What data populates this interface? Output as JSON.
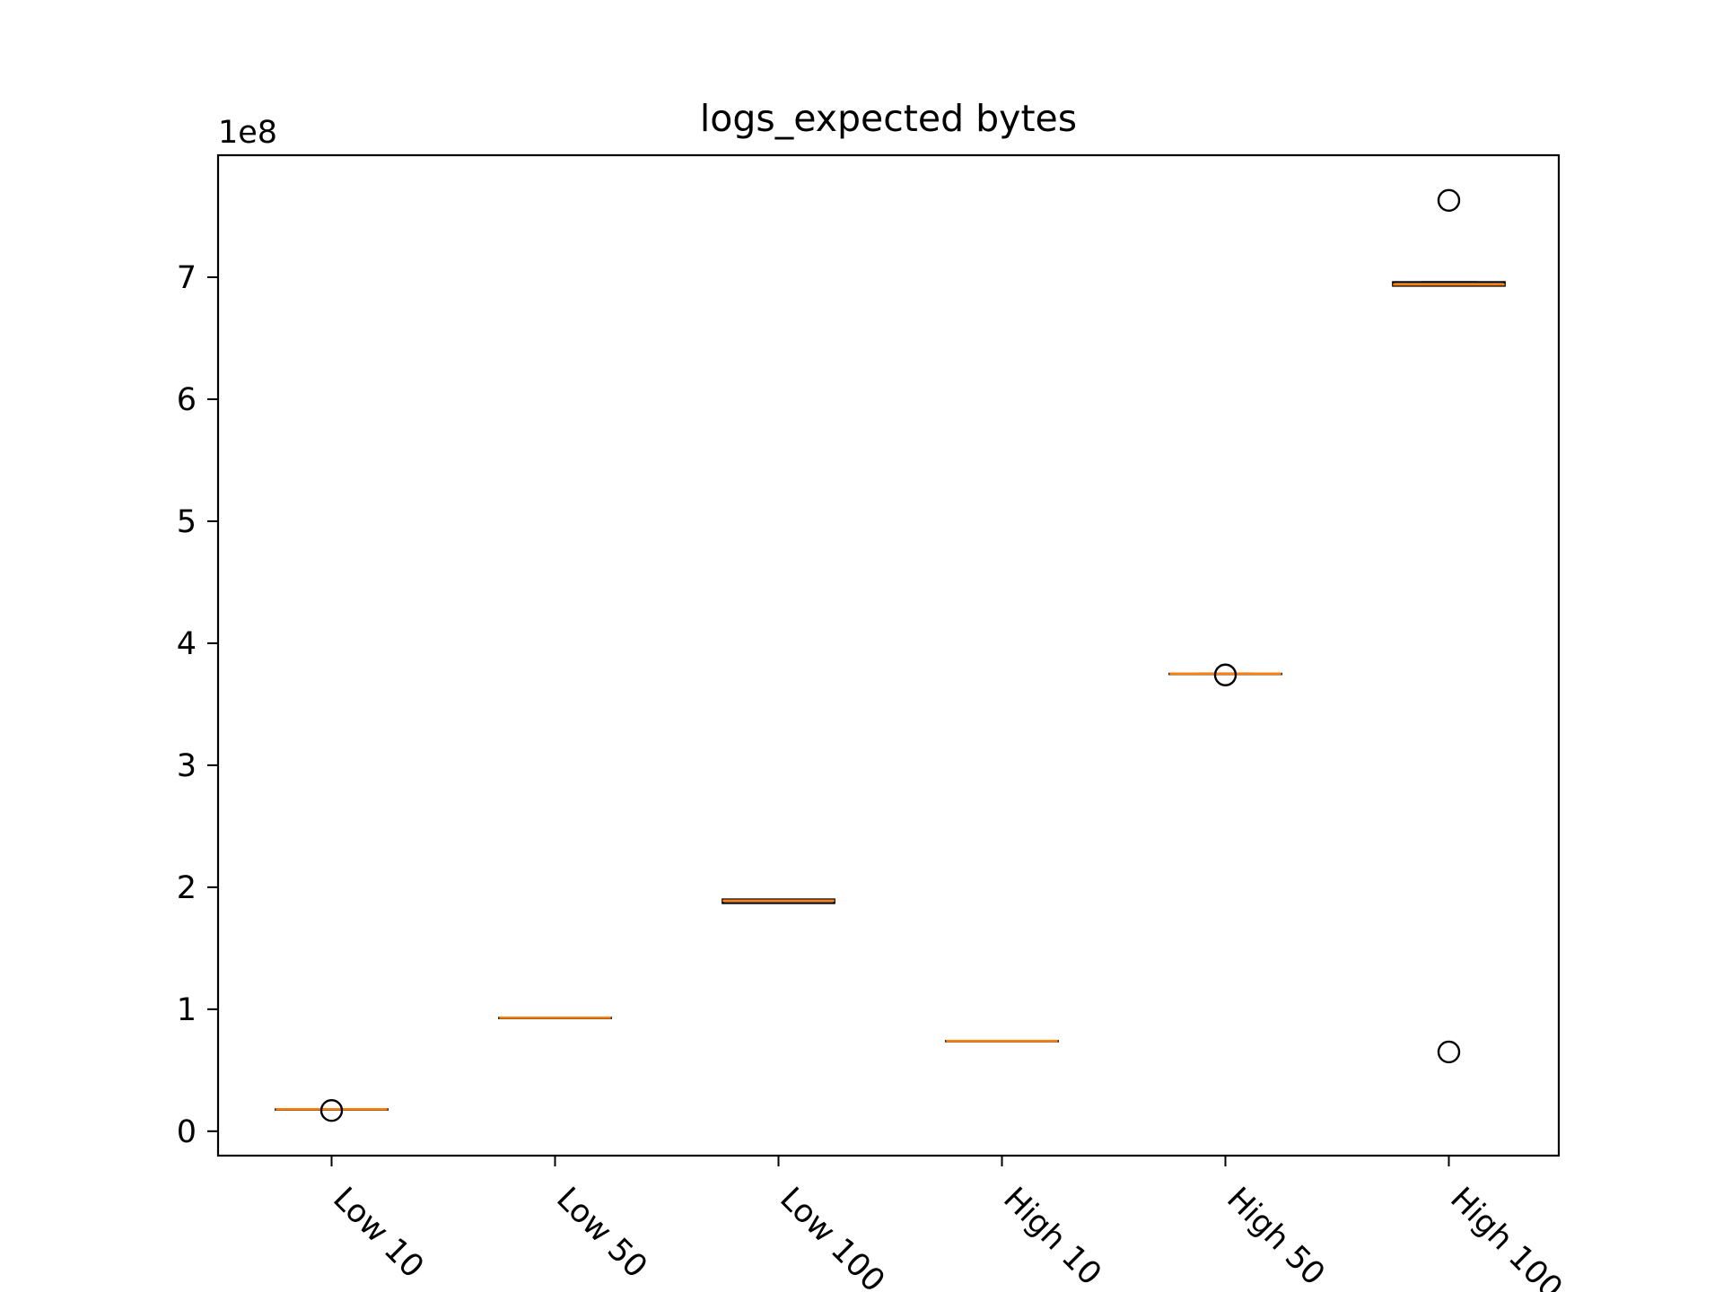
{
  "chart_data": {
    "type": "box",
    "title": "logs_expected bytes",
    "xlabel": "",
    "ylabel": "",
    "y_offset_label": "1e8",
    "y_multiplier": 100000000,
    "ylim": [
      -0.2,
      8.0
    ],
    "yticks": [
      0,
      1,
      2,
      3,
      4,
      5,
      6,
      7
    ],
    "ytick_labels": [
      "0",
      "1",
      "2",
      "3",
      "4",
      "5",
      "6",
      "7"
    ],
    "categories": [
      "Low 10",
      "Low 50",
      "Low 100",
      "High 10",
      "High 50",
      "High 100"
    ],
    "boxes": [
      {
        "label": "Low 10",
        "q1": 0.18,
        "median": 0.18,
        "q3": 0.18,
        "whisker_low": 0.18,
        "whisker_high": 0.18,
        "outliers": [
          0.17
        ]
      },
      {
        "label": "Low 50",
        "q1": 0.93,
        "median": 0.93,
        "q3": 0.93,
        "whisker_low": 0.93,
        "whisker_high": 0.93,
        "outliers": []
      },
      {
        "label": "Low 100",
        "q1": 1.87,
        "median": 1.89,
        "q3": 1.9,
        "whisker_low": 1.87,
        "whisker_high": 1.9,
        "outliers": []
      },
      {
        "label": "High 10",
        "q1": 0.74,
        "median": 0.74,
        "q3": 0.74,
        "whisker_low": 0.74,
        "whisker_high": 0.74,
        "outliers": []
      },
      {
        "label": "High 50",
        "q1": 3.75,
        "median": 3.75,
        "q3": 3.75,
        "whisker_low": 3.75,
        "whisker_high": 3.75,
        "outliers": [
          3.74
        ]
      },
      {
        "label": "High 100",
        "q1": 6.93,
        "median": 6.94,
        "q3": 6.96,
        "whisker_low": 6.93,
        "whisker_high": 6.96,
        "outliers": [
          7.63,
          0.65
        ]
      }
    ],
    "grid": false,
    "legend": "none",
    "colors": {
      "box": "#000000",
      "median": "#ff7f0e",
      "outlier": "#000000",
      "axes": "#000000"
    }
  }
}
